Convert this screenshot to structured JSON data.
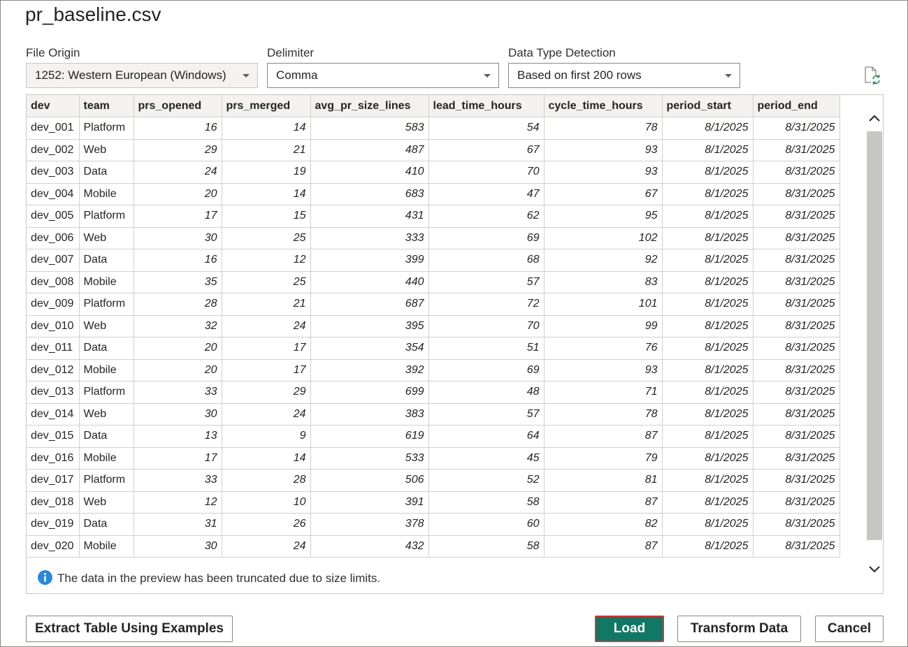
{
  "dialog": {
    "title": "pr_baseline.csv"
  },
  "options": {
    "file_origin": {
      "label": "File Origin",
      "value": "1252: Western European (Windows)",
      "disabled": true
    },
    "delimiter": {
      "label": "Delimiter",
      "value": "Comma"
    },
    "data_type_detection": {
      "label": "Data Type Detection",
      "value": "Based on first 200 rows"
    },
    "refresh_icon": "refresh-file-icon"
  },
  "table": {
    "columns": [
      "dev",
      "team",
      "prs_opened",
      "prs_merged",
      "avg_pr_size_lines",
      "lead_time_hours",
      "cycle_time_hours",
      "period_start",
      "period_end"
    ],
    "rows": [
      [
        "dev_001",
        "Platform",
        "16",
        "14",
        "583",
        "54",
        "78",
        "8/1/2025",
        "8/31/2025"
      ],
      [
        "dev_002",
        "Web",
        "29",
        "21",
        "487",
        "67",
        "93",
        "8/1/2025",
        "8/31/2025"
      ],
      [
        "dev_003",
        "Data",
        "24",
        "19",
        "410",
        "70",
        "93",
        "8/1/2025",
        "8/31/2025"
      ],
      [
        "dev_004",
        "Mobile",
        "20",
        "14",
        "683",
        "47",
        "67",
        "8/1/2025",
        "8/31/2025"
      ],
      [
        "dev_005",
        "Platform",
        "17",
        "15",
        "431",
        "62",
        "95",
        "8/1/2025",
        "8/31/2025"
      ],
      [
        "dev_006",
        "Web",
        "30",
        "25",
        "333",
        "69",
        "102",
        "8/1/2025",
        "8/31/2025"
      ],
      [
        "dev_007",
        "Data",
        "16",
        "12",
        "399",
        "68",
        "92",
        "8/1/2025",
        "8/31/2025"
      ],
      [
        "dev_008",
        "Mobile",
        "35",
        "25",
        "440",
        "57",
        "83",
        "8/1/2025",
        "8/31/2025"
      ],
      [
        "dev_009",
        "Platform",
        "28",
        "21",
        "687",
        "72",
        "101",
        "8/1/2025",
        "8/31/2025"
      ],
      [
        "dev_010",
        "Web",
        "32",
        "24",
        "395",
        "70",
        "99",
        "8/1/2025",
        "8/31/2025"
      ],
      [
        "dev_011",
        "Data",
        "20",
        "17",
        "354",
        "51",
        "76",
        "8/1/2025",
        "8/31/2025"
      ],
      [
        "dev_012",
        "Mobile",
        "20",
        "17",
        "392",
        "69",
        "93",
        "8/1/2025",
        "8/31/2025"
      ],
      [
        "dev_013",
        "Platform",
        "33",
        "29",
        "699",
        "48",
        "71",
        "8/1/2025",
        "8/31/2025"
      ],
      [
        "dev_014",
        "Web",
        "30",
        "24",
        "383",
        "57",
        "78",
        "8/1/2025",
        "8/31/2025"
      ],
      [
        "dev_015",
        "Data",
        "13",
        "9",
        "619",
        "64",
        "87",
        "8/1/2025",
        "8/31/2025"
      ],
      [
        "dev_016",
        "Mobile",
        "17",
        "14",
        "533",
        "45",
        "79",
        "8/1/2025",
        "8/31/2025"
      ],
      [
        "dev_017",
        "Platform",
        "33",
        "28",
        "506",
        "52",
        "81",
        "8/1/2025",
        "8/31/2025"
      ],
      [
        "dev_018",
        "Web",
        "12",
        "10",
        "391",
        "58",
        "87",
        "8/1/2025",
        "8/31/2025"
      ],
      [
        "dev_019",
        "Data",
        "31",
        "26",
        "378",
        "60",
        "82",
        "8/1/2025",
        "8/31/2025"
      ],
      [
        "dev_020",
        "Mobile",
        "30",
        "24",
        "432",
        "58",
        "87",
        "8/1/2025",
        "8/31/2025"
      ]
    ]
  },
  "scrollbar": {
    "up_icon": "chevron-up-icon",
    "down_icon": "chevron-down-icon"
  },
  "notice": {
    "icon": "info-icon",
    "text": "The data in the preview has been truncated due to size limits."
  },
  "buttons": {
    "extract": "Extract Table Using Examples",
    "load": "Load",
    "transform": "Transform Data",
    "cancel": "Cancel"
  },
  "colors": {
    "primary_button": "#117865",
    "primary_button_focus_border": "#d13438",
    "info_icon": "#2b88d8",
    "refresh_icon_accent": "#2e8b57"
  }
}
